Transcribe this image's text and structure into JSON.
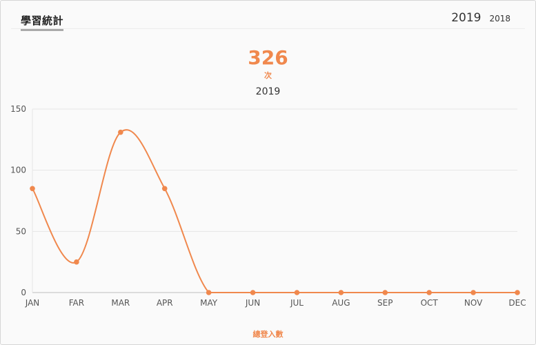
{
  "header": {
    "title": "學習統計",
    "years": [
      {
        "label": "2019",
        "active": true
      },
      {
        "label": "2018",
        "active": false
      }
    ]
  },
  "summary": {
    "total": "326",
    "unit": "次"
  },
  "footer_label": "總登入數",
  "colors": {
    "accent": "#f0884d",
    "grid": "#e6e6e6",
    "axis": "#bdbdbd"
  },
  "chart_data": {
    "type": "line",
    "title": "2019",
    "categories": [
      "JAN",
      "FAR",
      "MAR",
      "APR",
      "MAY",
      "JUN",
      "JUL",
      "AUG",
      "SEP",
      "OCT",
      "NOV",
      "DEC"
    ],
    "series": [
      {
        "values": [
          85,
          25,
          131,
          85,
          0,
          0,
          0,
          0,
          0,
          0,
          0,
          0
        ]
      }
    ],
    "ylim": [
      0,
      150
    ],
    "yticks": [
      0,
      50,
      100,
      150
    ],
    "grid": true,
    "smooth": true
  }
}
